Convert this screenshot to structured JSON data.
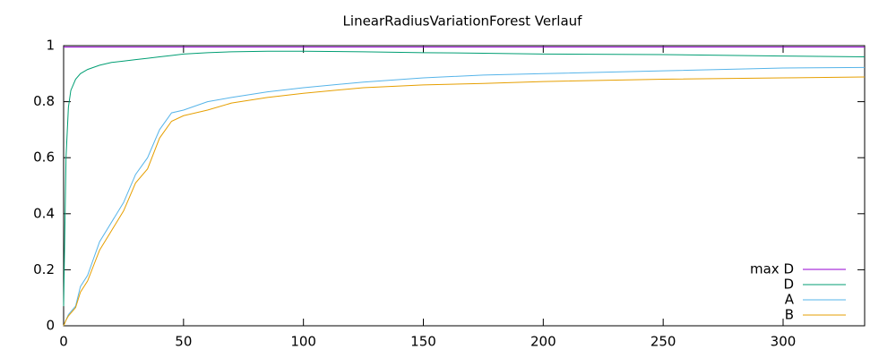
{
  "chart_data": {
    "type": "line",
    "title": "LinearRadiusVariationForest Verlauf",
    "x": [
      0,
      1,
      2,
      3,
      5,
      7,
      10,
      15,
      20,
      25,
      30,
      35,
      40,
      45,
      50,
      60,
      70,
      85,
      100,
      125,
      150,
      175,
      200,
      250,
      300,
      334
    ],
    "series": [
      {
        "name": "max D",
        "color": "#9400d3",
        "values": [
          0.995,
          0.995,
          0.995,
          0.995,
          0.995,
          0.995,
          0.995,
          0.995,
          0.995,
          0.995,
          0.995,
          0.995,
          0.995,
          0.995,
          0.995,
          0.995,
          0.995,
          0.995,
          0.995,
          0.995,
          0.995,
          0.995,
          0.995,
          0.995,
          0.995,
          0.995
        ]
      },
      {
        "name": "D",
        "color": "#009e73",
        "values": [
          0.07,
          0.6,
          0.78,
          0.84,
          0.88,
          0.9,
          0.915,
          0.93,
          0.94,
          0.945,
          0.95,
          0.955,
          0.96,
          0.965,
          0.97,
          0.975,
          0.978,
          0.98,
          0.98,
          0.978,
          0.975,
          0.973,
          0.97,
          0.968,
          0.963,
          0.96
        ]
      },
      {
        "name": "A",
        "color": "#56b4e9",
        "values": [
          0,
          0.02,
          0.04,
          0.05,
          0.07,
          0.14,
          0.18,
          0.3,
          0.37,
          0.44,
          0.54,
          0.6,
          0.7,
          0.76,
          0.77,
          0.8,
          0.815,
          0.835,
          0.85,
          0.87,
          0.885,
          0.895,
          0.9,
          0.91,
          0.92,
          0.922
        ]
      },
      {
        "name": "B",
        "color": "#e69f00",
        "values": [
          0,
          0.02,
          0.035,
          0.045,
          0.065,
          0.12,
          0.16,
          0.27,
          0.34,
          0.41,
          0.51,
          0.56,
          0.67,
          0.73,
          0.75,
          0.77,
          0.795,
          0.815,
          0.83,
          0.85,
          0.86,
          0.865,
          0.872,
          0.88,
          0.885,
          0.888
        ]
      }
    ],
    "xlim": [
      0,
      334
    ],
    "xticks": [
      0,
      50,
      100,
      150,
      200,
      250,
      300
    ],
    "ylim": [
      0,
      1
    ],
    "yticks": [
      0,
      0.2,
      0.4,
      0.6,
      0.8,
      1
    ],
    "legend": "bottom-right"
  }
}
